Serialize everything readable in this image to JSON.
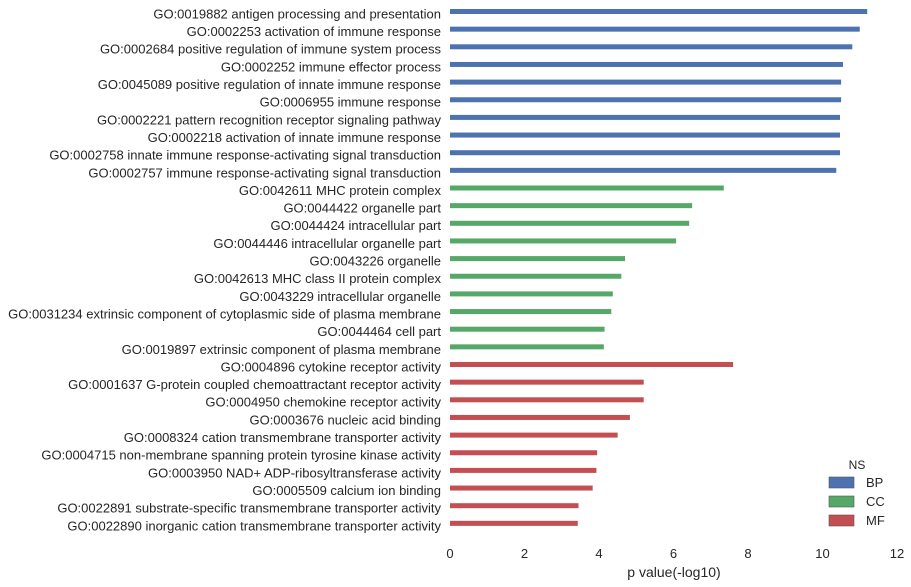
{
  "chart_data": {
    "type": "bar",
    "orientation": "horizontal",
    "xlabel": "p value(-log10)",
    "ylabel": "",
    "xlim": [
      0,
      12
    ],
    "xticks": [
      "0",
      "2",
      "4",
      "6",
      "8",
      "10",
      "12"
    ],
    "grid": false,
    "legend": {
      "title": "NS",
      "placement": "bottom-right",
      "entries": [
        {
          "name": "BP",
          "color": "#4c72b0"
        },
        {
          "name": "CC",
          "color": "#55a868"
        },
        {
          "name": "MF",
          "color": "#c44e52"
        }
      ]
    },
    "categories": [
      "GO:0019882 antigen processing and presentation",
      "GO:0002253 activation of immune response",
      "GO:0002684 positive regulation of immune system process",
      "GO:0002252 immune effector process",
      "GO:0045089 positive regulation of innate immune response",
      "GO:0006955 immune response",
      "GO:0002221 pattern recognition receptor signaling pathway",
      "GO:0002218 activation of innate immune response",
      "GO:0002758 innate immune response-activating signal transduction",
      "GO:0002757 immune response-activating signal transduction",
      "GO:0042611 MHC protein complex",
      "GO:0044422 organelle part",
      "GO:0044424 intracellular part",
      "GO:0044446 intracellular organelle part",
      "GO:0043226 organelle",
      "GO:0042613 MHC class II protein complex",
      "GO:0043229 intracellular organelle",
      "GO:0031234 extrinsic component of cytoplasmic side of plasma membrane",
      "GO:0044464 cell part",
      "GO:0019897 extrinsic component of plasma membrane",
      "GO:0004896 cytokine receptor activity",
      "GO:0001637 G-protein coupled chemoattractant receptor activity",
      "GO:0004950 chemokine receptor activity",
      "GO:0003676 nucleic acid binding",
      "GO:0008324 cation transmembrane transporter activity",
      "GO:0004715 non-membrane spanning protein tyrosine kinase activity",
      "GO:0003950 NAD+ ADP-ribosyltransferase activity",
      "GO:0005509 calcium ion binding",
      "GO:0022891 substrate-specific transmembrane transporter activity",
      "GO:0022890 inorganic cation transmembrane transporter activity"
    ],
    "groups": [
      "BP",
      "BP",
      "BP",
      "BP",
      "BP",
      "BP",
      "BP",
      "BP",
      "BP",
      "BP",
      "CC",
      "CC",
      "CC",
      "CC",
      "CC",
      "CC",
      "CC",
      "CC",
      "CC",
      "CC",
      "MF",
      "MF",
      "MF",
      "MF",
      "MF",
      "MF",
      "MF",
      "MF",
      "MF",
      "MF"
    ],
    "values": [
      11.2,
      11.0,
      10.8,
      10.55,
      10.5,
      10.5,
      10.47,
      10.47,
      10.47,
      10.37,
      7.35,
      6.5,
      6.42,
      6.07,
      4.7,
      4.6,
      4.37,
      4.33,
      4.15,
      4.13,
      7.6,
      5.2,
      5.2,
      4.83,
      4.5,
      3.95,
      3.93,
      3.83,
      3.45,
      3.43
    ]
  }
}
